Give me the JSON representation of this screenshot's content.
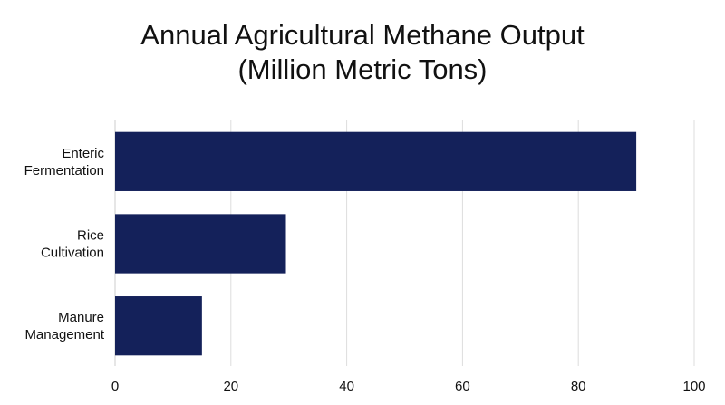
{
  "chart_data": {
    "type": "bar",
    "orientation": "horizontal",
    "title": [
      "Annual Agricultural Methane Output",
      "(Million Metric Tons)"
    ],
    "categories": [
      [
        "Enteric",
        "Fermentation"
      ],
      [
        "Rice",
        "Cultivation"
      ],
      [
        "Manure",
        "Management"
      ]
    ],
    "values": [
      90,
      29.5,
      15
    ],
    "xlim": [
      0,
      100
    ],
    "xticks": [
      "0",
      "20",
      "40",
      "60",
      "80",
      "100"
    ],
    "grid": "vertical",
    "legend": "none",
    "colors": {
      "bar": "#14215a",
      "grid": "#dddddd",
      "text": "#111111"
    }
  }
}
